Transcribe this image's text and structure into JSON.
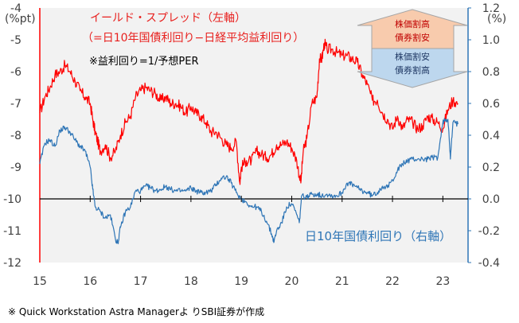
{
  "chart_data": {
    "type": "line",
    "left_axis": {
      "unit": "(%pt)",
      "min": -12,
      "max": -4,
      "ticks": [
        "-4",
        "-5",
        "-6",
        "-7",
        "-8",
        "-9",
        "-10",
        "-11",
        "-12"
      ]
    },
    "right_axis": {
      "unit": "(%)",
      "min": -0.4,
      "max": 1.2,
      "ticks": [
        "1.2",
        "1.0",
        "0.8",
        "0.6",
        "0.4",
        "0.2",
        "0.0",
        "-0.2",
        "-0.4"
      ]
    },
    "x_axis": {
      "min": 15,
      "max": 23.5,
      "ticks": [
        "15",
        "16",
        "17",
        "18",
        "19",
        "20",
        "21",
        "22",
        "23"
      ]
    },
    "series": [
      {
        "name": "yield_spread",
        "axis": "left",
        "color": "#ff0000",
        "points": [
          [
            15.0,
            -7.3
          ],
          [
            15.1,
            -6.8
          ],
          [
            15.2,
            -6.5
          ],
          [
            15.3,
            -6.1
          ],
          [
            15.4,
            -6.0
          ],
          [
            15.5,
            -5.8
          ],
          [
            15.6,
            -6.0
          ],
          [
            15.7,
            -6.3
          ],
          [
            15.8,
            -6.6
          ],
          [
            15.9,
            -6.8
          ],
          [
            16.0,
            -7.0
          ],
          [
            16.05,
            -7.5
          ],
          [
            16.1,
            -7.9
          ],
          [
            16.15,
            -8.2
          ],
          [
            16.2,
            -8.5
          ],
          [
            16.3,
            -8.3
          ],
          [
            16.4,
            -8.7
          ],
          [
            16.5,
            -8.5
          ],
          [
            16.6,
            -8.0
          ],
          [
            16.7,
            -7.6
          ],
          [
            16.8,
            -7.4
          ],
          [
            16.9,
            -6.8
          ],
          [
            17.0,
            -6.6
          ],
          [
            17.1,
            -6.5
          ],
          [
            17.2,
            -6.6
          ],
          [
            17.3,
            -6.7
          ],
          [
            17.4,
            -6.9
          ],
          [
            17.5,
            -6.8
          ],
          [
            17.6,
            -7.0
          ],
          [
            17.7,
            -7.0
          ],
          [
            17.8,
            -7.1
          ],
          [
            17.9,
            -7.3
          ],
          [
            18.0,
            -7.1
          ],
          [
            18.1,
            -7.3
          ],
          [
            18.2,
            -7.4
          ],
          [
            18.3,
            -7.6
          ],
          [
            18.4,
            -7.9
          ],
          [
            18.5,
            -7.9
          ],
          [
            18.6,
            -8.1
          ],
          [
            18.7,
            -8.3
          ],
          [
            18.8,
            -8.4
          ],
          [
            18.9,
            -8.2
          ],
          [
            18.97,
            -9.5
          ],
          [
            19.0,
            -9.0
          ],
          [
            19.1,
            -8.8
          ],
          [
            19.2,
            -8.8
          ],
          [
            19.3,
            -8.5
          ],
          [
            19.4,
            -8.6
          ],
          [
            19.5,
            -8.7
          ],
          [
            19.6,
            -8.6
          ],
          [
            19.7,
            -8.3
          ],
          [
            19.8,
            -8.3
          ],
          [
            19.9,
            -8.2
          ],
          [
            20.0,
            -8.4
          ],
          [
            20.1,
            -8.8
          ],
          [
            20.18,
            -9.5
          ],
          [
            20.23,
            -8.5
          ],
          [
            20.3,
            -8.1
          ],
          [
            20.4,
            -7.0
          ],
          [
            20.5,
            -6.8
          ],
          [
            20.55,
            -5.6
          ],
          [
            20.6,
            -5.6
          ],
          [
            20.65,
            -5.1
          ],
          [
            20.7,
            -5.3
          ],
          [
            20.8,
            -5.3
          ],
          [
            20.9,
            -5.4
          ],
          [
            21.0,
            -5.5
          ],
          [
            21.1,
            -5.5
          ],
          [
            21.2,
            -5.6
          ],
          [
            21.3,
            -5.7
          ],
          [
            21.4,
            -6.1
          ],
          [
            21.5,
            -6.4
          ],
          [
            21.6,
            -6.9
          ],
          [
            21.7,
            -6.9
          ],
          [
            21.8,
            -7.3
          ],
          [
            21.9,
            -7.5
          ],
          [
            22.0,
            -7.8
          ],
          [
            22.1,
            -7.4
          ],
          [
            22.2,
            -7.8
          ],
          [
            22.3,
            -7.5
          ],
          [
            22.4,
            -7.6
          ],
          [
            22.5,
            -7.8
          ],
          [
            22.6,
            -7.7
          ],
          [
            22.7,
            -7.4
          ],
          [
            22.8,
            -7.5
          ],
          [
            22.9,
            -7.6
          ],
          [
            23.0,
            -7.8
          ],
          [
            23.1,
            -7.2
          ],
          [
            23.2,
            -6.9
          ],
          [
            23.3,
            -7.0
          ]
        ]
      },
      {
        "name": "jgb_10y",
        "axis": "right",
        "color": "#2e75b6",
        "points": [
          [
            15.0,
            0.22
          ],
          [
            15.1,
            0.35
          ],
          [
            15.2,
            0.37
          ],
          [
            15.3,
            0.33
          ],
          [
            15.4,
            0.43
          ],
          [
            15.5,
            0.45
          ],
          [
            15.6,
            0.42
          ],
          [
            15.7,
            0.37
          ],
          [
            15.8,
            0.33
          ],
          [
            15.9,
            0.3
          ],
          [
            16.0,
            0.2
          ],
          [
            16.05,
            0.06
          ],
          [
            16.1,
            -0.05
          ],
          [
            16.2,
            -0.08
          ],
          [
            16.3,
            -0.12
          ],
          [
            16.4,
            -0.1
          ],
          [
            16.5,
            -0.25
          ],
          [
            16.55,
            -0.28
          ],
          [
            16.6,
            -0.18
          ],
          [
            16.7,
            -0.08
          ],
          [
            16.8,
            -0.05
          ],
          [
            16.9,
            0.05
          ],
          [
            17.0,
            0.05
          ],
          [
            17.1,
            0.08
          ],
          [
            17.2,
            0.07
          ],
          [
            17.3,
            0.05
          ],
          [
            17.4,
            0.06
          ],
          [
            17.5,
            0.08
          ],
          [
            17.6,
            0.06
          ],
          [
            17.7,
            0.05
          ],
          [
            17.8,
            0.05
          ],
          [
            17.9,
            0.05
          ],
          [
            18.0,
            0.07
          ],
          [
            18.1,
            0.05
          ],
          [
            18.2,
            0.04
          ],
          [
            18.3,
            0.04
          ],
          [
            18.4,
            0.05
          ],
          [
            18.5,
            0.09
          ],
          [
            18.6,
            0.13
          ],
          [
            18.7,
            0.14
          ],
          [
            18.8,
            0.1
          ],
          [
            18.9,
            0.04
          ],
          [
            19.0,
            0.0
          ],
          [
            19.1,
            -0.02
          ],
          [
            19.2,
            -0.05
          ],
          [
            19.3,
            -0.05
          ],
          [
            19.4,
            -0.08
          ],
          [
            19.5,
            -0.14
          ],
          [
            19.6,
            -0.22
          ],
          [
            19.65,
            -0.27
          ],
          [
            19.7,
            -0.2
          ],
          [
            19.8,
            -0.15
          ],
          [
            19.9,
            -0.05
          ],
          [
            20.0,
            -0.03
          ],
          [
            20.1,
            -0.1
          ],
          [
            20.15,
            -0.15
          ],
          [
            20.2,
            0.02
          ],
          [
            20.3,
            0.01
          ],
          [
            20.4,
            0.03
          ],
          [
            20.5,
            0.03
          ],
          [
            20.6,
            0.02
          ],
          [
            20.7,
            0.03
          ],
          [
            20.8,
            0.02
          ],
          [
            20.9,
            0.02
          ],
          [
            21.0,
            0.04
          ],
          [
            21.1,
            0.1
          ],
          [
            21.2,
            0.09
          ],
          [
            21.3,
            0.07
          ],
          [
            21.4,
            0.05
          ],
          [
            21.5,
            0.04
          ],
          [
            21.6,
            0.02
          ],
          [
            21.7,
            0.04
          ],
          [
            21.8,
            0.08
          ],
          [
            21.9,
            0.07
          ],
          [
            22.0,
            0.12
          ],
          [
            22.1,
            0.18
          ],
          [
            22.2,
            0.22
          ],
          [
            22.3,
            0.24
          ],
          [
            22.4,
            0.25
          ],
          [
            22.5,
            0.25
          ],
          [
            22.6,
            0.25
          ],
          [
            22.7,
            0.25
          ],
          [
            22.8,
            0.26
          ],
          [
            22.9,
            0.26
          ],
          [
            23.0,
            0.48
          ],
          [
            23.05,
            0.5
          ],
          [
            23.1,
            0.5
          ],
          [
            23.15,
            0.25
          ],
          [
            23.2,
            0.48
          ],
          [
            23.3,
            0.47
          ]
        ]
      }
    ],
    "annotations": {
      "red_title": "イールド・スプレッド（左軸）",
      "red_formula": "（=日10年国債利回り−日経平均益利回り）",
      "note": "※益利回り=1/予想PER",
      "blue_label": "日10年国債利回り（右軸）",
      "arrow_up": [
        "株価割高",
        "債券割安"
      ],
      "arrow_down": [
        "株価割安",
        "債券割高"
      ]
    }
  },
  "source": "※ Quick Workstation Astra Managerよ りSBI証券が作成",
  "colors": {
    "plot_bg": "#f2f2f2",
    "red": "#ff0000",
    "blue": "#2e75b6",
    "arrow_up_fill": "#f8cbad",
    "arrow_down_fill": "#bdd7ee"
  }
}
